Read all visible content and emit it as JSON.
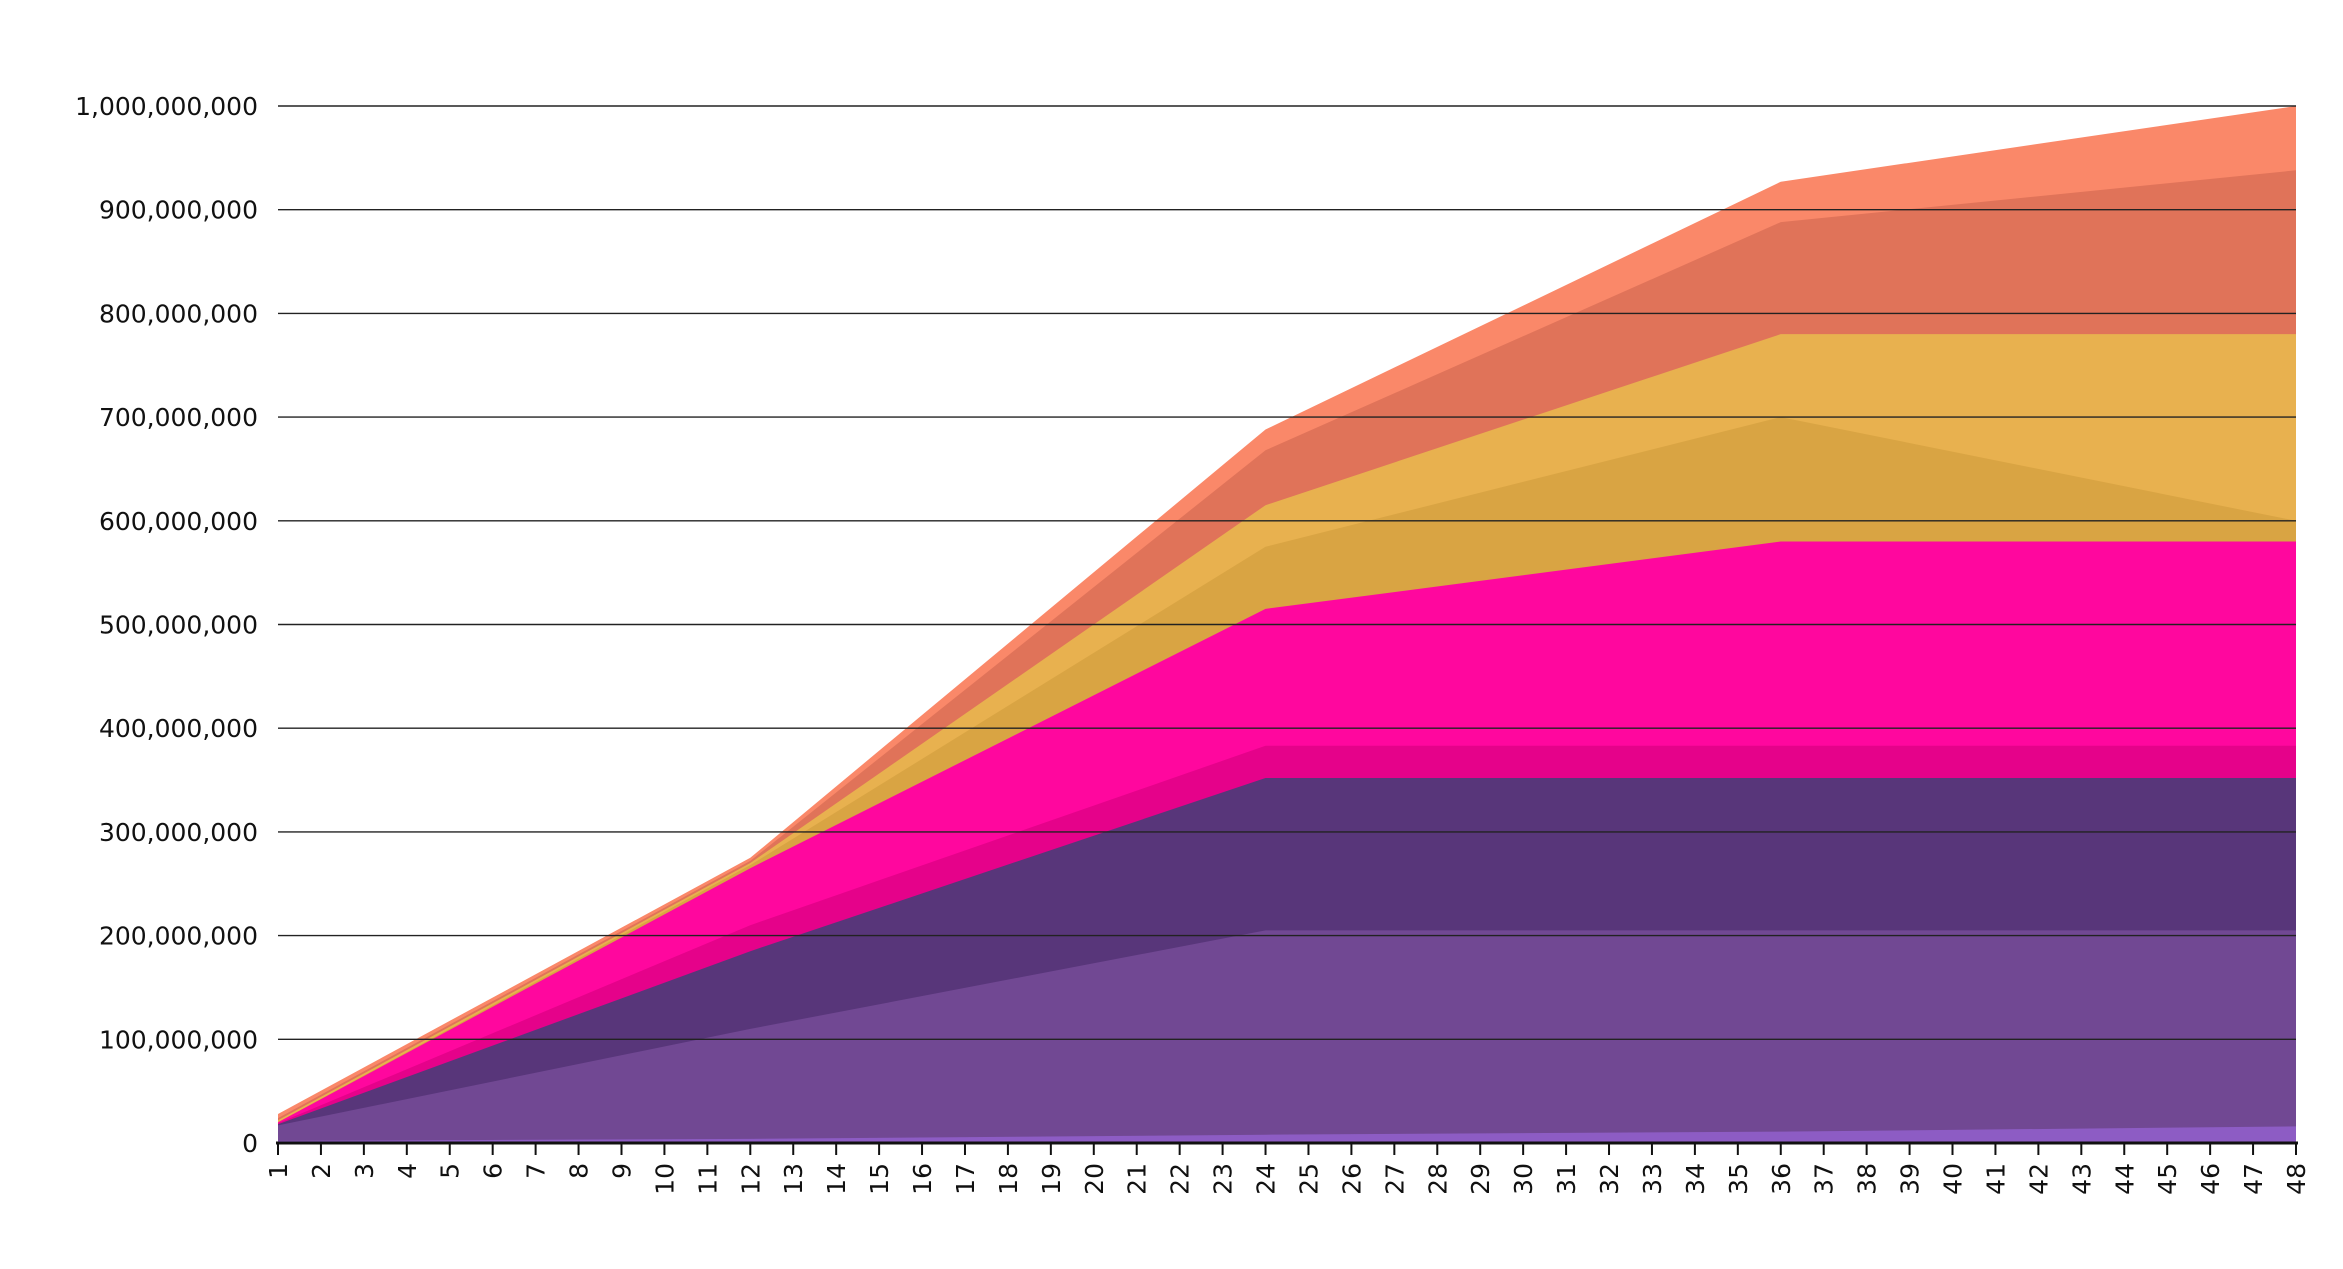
{
  "chart_data": {
    "type": "area",
    "title": "",
    "xlabel": "",
    "ylabel": "",
    "x": [
      1,
      2,
      3,
      4,
      5,
      6,
      7,
      8,
      9,
      10,
      11,
      12,
      13,
      14,
      15,
      16,
      17,
      18,
      19,
      20,
      21,
      22,
      23,
      24,
      25,
      26,
      27,
      28,
      29,
      30,
      31,
      32,
      33,
      34,
      35,
      36,
      37,
      38,
      39,
      40,
      41,
      42,
      43,
      44,
      45,
      46,
      47,
      48
    ],
    "ylim": [
      0,
      1000000000
    ],
    "yticks": [
      0,
      100000000,
      200000000,
      300000000,
      400000000,
      500000000,
      600000000,
      700000000,
      800000000,
      900000000,
      1000000000
    ],
    "ytick_labels": [
      "0",
      "100,000,000",
      "200,000,000",
      "300,000,000",
      "400,000,000",
      "500,000,000",
      "600,000,000",
      "700,000,000",
      "800,000,000",
      "900,000,000",
      "1,000,000,000"
    ],
    "grid": "horizontal",
    "legend": "none",
    "series": [
      {
        "color": "#FA8869",
        "points": [
          [
            1,
            28000000
          ],
          [
            12,
            275000000
          ],
          [
            24,
            688000000
          ],
          [
            36,
            927000000
          ],
          [
            48,
            1000000000
          ]
        ]
      },
      {
        "color": "#E07359",
        "points": [
          [
            1,
            24000000
          ],
          [
            12,
            272000000
          ],
          [
            24,
            668000000
          ],
          [
            36,
            888000000
          ],
          [
            48,
            938000000
          ]
        ]
      },
      {
        "color": "#E8B14F",
        "points": [
          [
            1,
            22000000
          ],
          [
            12,
            270000000
          ],
          [
            24,
            615000000
          ],
          [
            36,
            780000000
          ],
          [
            48,
            780000000
          ]
        ]
      },
      {
        "color": "#D9A443",
        "points": [
          [
            1,
            20000000
          ],
          [
            12,
            268000000
          ],
          [
            24,
            575000000
          ],
          [
            36,
            700000000
          ],
          [
            48,
            600000000
          ]
        ]
      },
      {
        "color": "#FF079E",
        "points": [
          [
            1,
            20000000
          ],
          [
            12,
            265000000
          ],
          [
            24,
            515000000
          ],
          [
            36,
            580000000
          ],
          [
            48,
            580000000
          ]
        ]
      },
      {
        "color": "#E5028A",
        "points": [
          [
            1,
            19000000
          ],
          [
            12,
            210000000
          ],
          [
            24,
            383000000
          ],
          [
            36,
            383000000
          ],
          [
            48,
            383000000
          ]
        ]
      },
      {
        "color": "#58367A",
        "points": [
          [
            1,
            18000000
          ],
          [
            12,
            185000000
          ],
          [
            24,
            352000000
          ],
          [
            36,
            352000000
          ],
          [
            48,
            352000000
          ]
        ]
      },
      {
        "color": "#714893",
        "points": [
          [
            1,
            17000000
          ],
          [
            12,
            110000000
          ],
          [
            24,
            205000000
          ],
          [
            36,
            205000000
          ],
          [
            48,
            205000000
          ]
        ]
      },
      {
        "color": "#8D5CC4",
        "points": [
          [
            1,
            2000000
          ],
          [
            12,
            4000000
          ],
          [
            24,
            8000000
          ],
          [
            36,
            11000000
          ],
          [
            48,
            16000000
          ]
        ]
      }
    ]
  }
}
